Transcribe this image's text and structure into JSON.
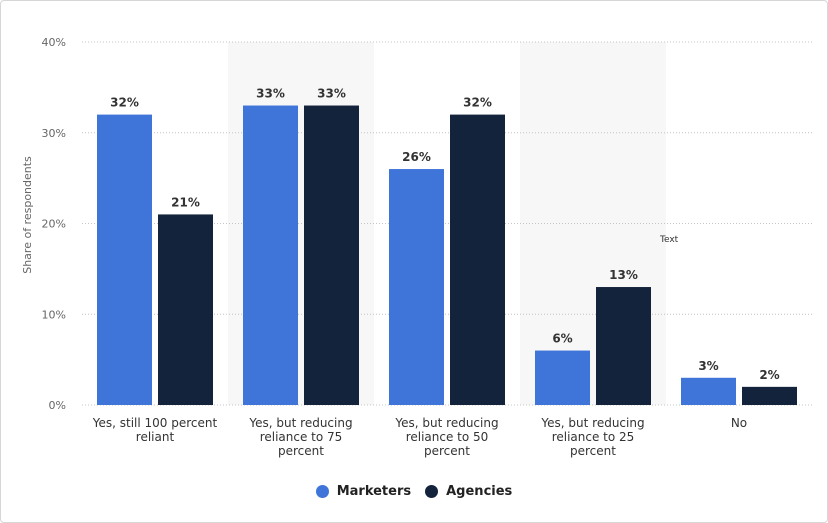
{
  "chart_data": {
    "type": "bar",
    "categories": [
      [
        "Yes, still 100 percent",
        "reliant"
      ],
      [
        "Yes, but reducing",
        "reliance to 75",
        "percent"
      ],
      [
        "Yes, but reducing",
        "reliance to 50",
        "percent"
      ],
      [
        "Yes, but reducing",
        "reliance to 25",
        "percent"
      ],
      [
        "No"
      ]
    ],
    "series": [
      {
        "name": "Marketers",
        "values": [
          32,
          33,
          26,
          6,
          3
        ],
        "color": "#3f74d8"
      },
      {
        "name": "Agencies",
        "values": [
          21,
          33,
          32,
          13,
          2
        ],
        "color": "#14233c"
      }
    ],
    "ylabel": "Share of respondents",
    "ylim": [
      0,
      40
    ],
    "yticks": [
      0,
      10,
      20,
      30,
      40
    ],
    "tick_suffix": "%",
    "value_suffix": "%",
    "grid": true,
    "legend_position": "bottom-center",
    "annotation": "Text"
  }
}
